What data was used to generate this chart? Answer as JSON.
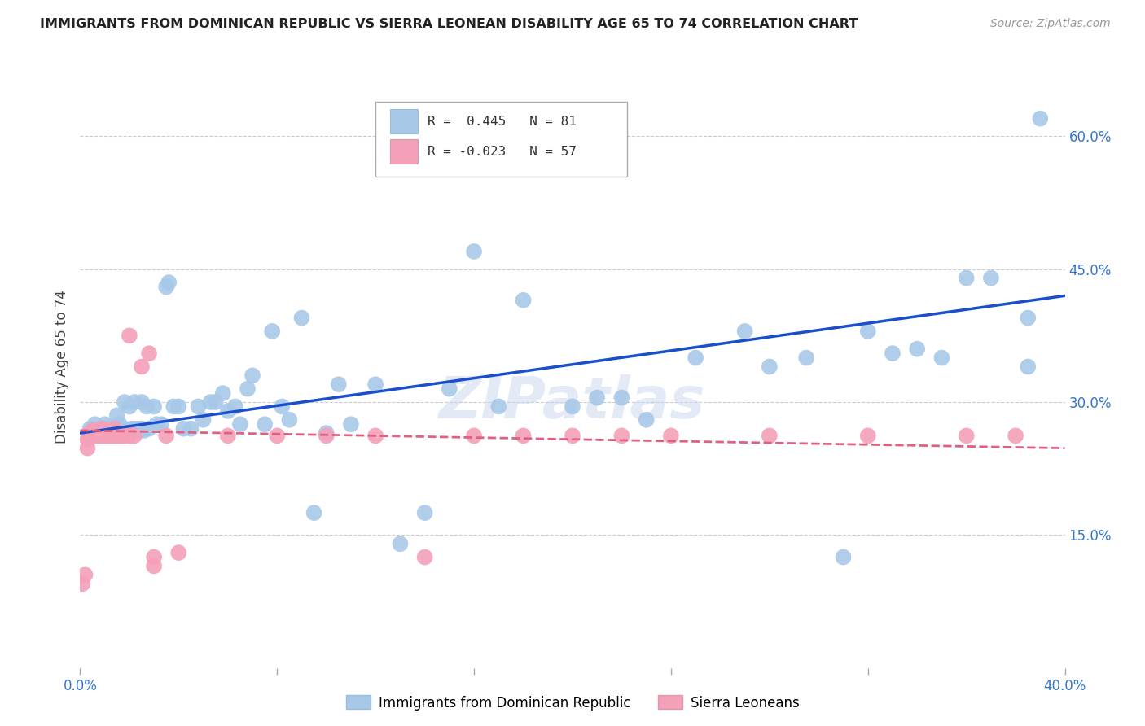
{
  "title": "IMMIGRANTS FROM DOMINICAN REPUBLIC VS SIERRA LEONEAN DISABILITY AGE 65 TO 74 CORRELATION CHART",
  "source": "Source: ZipAtlas.com",
  "ylabel": "Disability Age 65 to 74",
  "xlim": [
    0.0,
    0.4
  ],
  "ylim": [
    0.0,
    0.68
  ],
  "yticks": [
    0.15,
    0.3,
    0.45,
    0.6
  ],
  "ytick_labels": [
    "15.0%",
    "30.0%",
    "45.0%",
    "60.0%"
  ],
  "xticks": [
    0.0,
    0.08,
    0.16,
    0.24,
    0.32,
    0.4
  ],
  "xtick_labels": [
    "0.0%",
    "",
    "",
    "",
    "",
    "40.0%"
  ],
  "blue_color": "#a8c8e8",
  "pink_color": "#f4a0b8",
  "line_blue": "#1a4fcc",
  "line_pink": "#e06080",
  "watermark": "ZIPatlas",
  "blue_scatter_x": [
    0.004,
    0.006,
    0.008,
    0.009,
    0.01,
    0.011,
    0.012,
    0.013,
    0.014,
    0.015,
    0.015,
    0.016,
    0.017,
    0.018,
    0.018,
    0.019,
    0.02,
    0.02,
    0.021,
    0.022,
    0.022,
    0.023,
    0.024,
    0.025,
    0.025,
    0.026,
    0.027,
    0.028,
    0.03,
    0.031,
    0.033,
    0.035,
    0.036,
    0.038,
    0.04,
    0.042,
    0.045,
    0.048,
    0.05,
    0.053,
    0.055,
    0.058,
    0.06,
    0.063,
    0.065,
    0.068,
    0.07,
    0.075,
    0.078,
    0.082,
    0.085,
    0.09,
    0.095,
    0.1,
    0.105,
    0.11,
    0.12,
    0.13,
    0.14,
    0.15,
    0.16,
    0.17,
    0.18,
    0.2,
    0.21,
    0.22,
    0.23,
    0.25,
    0.27,
    0.28,
    0.295,
    0.31,
    0.32,
    0.33,
    0.34,
    0.35,
    0.36,
    0.37,
    0.385,
    0.385,
    0.39
  ],
  "blue_scatter_y": [
    0.27,
    0.275,
    0.27,
    0.265,
    0.275,
    0.27,
    0.265,
    0.27,
    0.272,
    0.285,
    0.265,
    0.275,
    0.268,
    0.27,
    0.3,
    0.265,
    0.268,
    0.295,
    0.27,
    0.268,
    0.3,
    0.27,
    0.268,
    0.27,
    0.3,
    0.268,
    0.295,
    0.27,
    0.295,
    0.275,
    0.275,
    0.43,
    0.435,
    0.295,
    0.295,
    0.27,
    0.27,
    0.295,
    0.28,
    0.3,
    0.3,
    0.31,
    0.29,
    0.295,
    0.275,
    0.315,
    0.33,
    0.275,
    0.38,
    0.295,
    0.28,
    0.395,
    0.175,
    0.265,
    0.32,
    0.275,
    0.32,
    0.14,
    0.175,
    0.315,
    0.47,
    0.295,
    0.415,
    0.295,
    0.305,
    0.305,
    0.28,
    0.35,
    0.38,
    0.34,
    0.35,
    0.125,
    0.38,
    0.355,
    0.36,
    0.35,
    0.44,
    0.44,
    0.395,
    0.34,
    0.62
  ],
  "pink_scatter_x": [
    0.001,
    0.002,
    0.003,
    0.003,
    0.004,
    0.004,
    0.005,
    0.005,
    0.006,
    0.006,
    0.007,
    0.007,
    0.007,
    0.008,
    0.008,
    0.008,
    0.009,
    0.009,
    0.01,
    0.01,
    0.011,
    0.011,
    0.012,
    0.012,
    0.013,
    0.013,
    0.014,
    0.014,
    0.015,
    0.015,
    0.016,
    0.017,
    0.018,
    0.019,
    0.02,
    0.022,
    0.025,
    0.028,
    0.03,
    0.035,
    0.04,
    0.06,
    0.08,
    0.1,
    0.12,
    0.14,
    0.16,
    0.18,
    0.2,
    0.22,
    0.24,
    0.28,
    0.32,
    0.36,
    0.38,
    0.03,
    0.02
  ],
  "pink_scatter_y": [
    0.095,
    0.105,
    0.248,
    0.258,
    0.26,
    0.265,
    0.262,
    0.268,
    0.262,
    0.268,
    0.262,
    0.268,
    0.268,
    0.262,
    0.265,
    0.268,
    0.262,
    0.27,
    0.262,
    0.268,
    0.262,
    0.268,
    0.262,
    0.265,
    0.262,
    0.265,
    0.262,
    0.27,
    0.262,
    0.265,
    0.262,
    0.262,
    0.262,
    0.265,
    0.262,
    0.262,
    0.34,
    0.355,
    0.125,
    0.262,
    0.13,
    0.262,
    0.262,
    0.262,
    0.262,
    0.125,
    0.262,
    0.262,
    0.262,
    0.262,
    0.262,
    0.262,
    0.262,
    0.262,
    0.262,
    0.115,
    0.375
  ],
  "blue_line_x": [
    0.0,
    0.4
  ],
  "blue_line_y": [
    0.265,
    0.42
  ],
  "pink_line_x": [
    0.0,
    0.4
  ],
  "pink_line_y": [
    0.268,
    0.248
  ],
  "grid_color": "#cccccc",
  "background_color": "#ffffff"
}
